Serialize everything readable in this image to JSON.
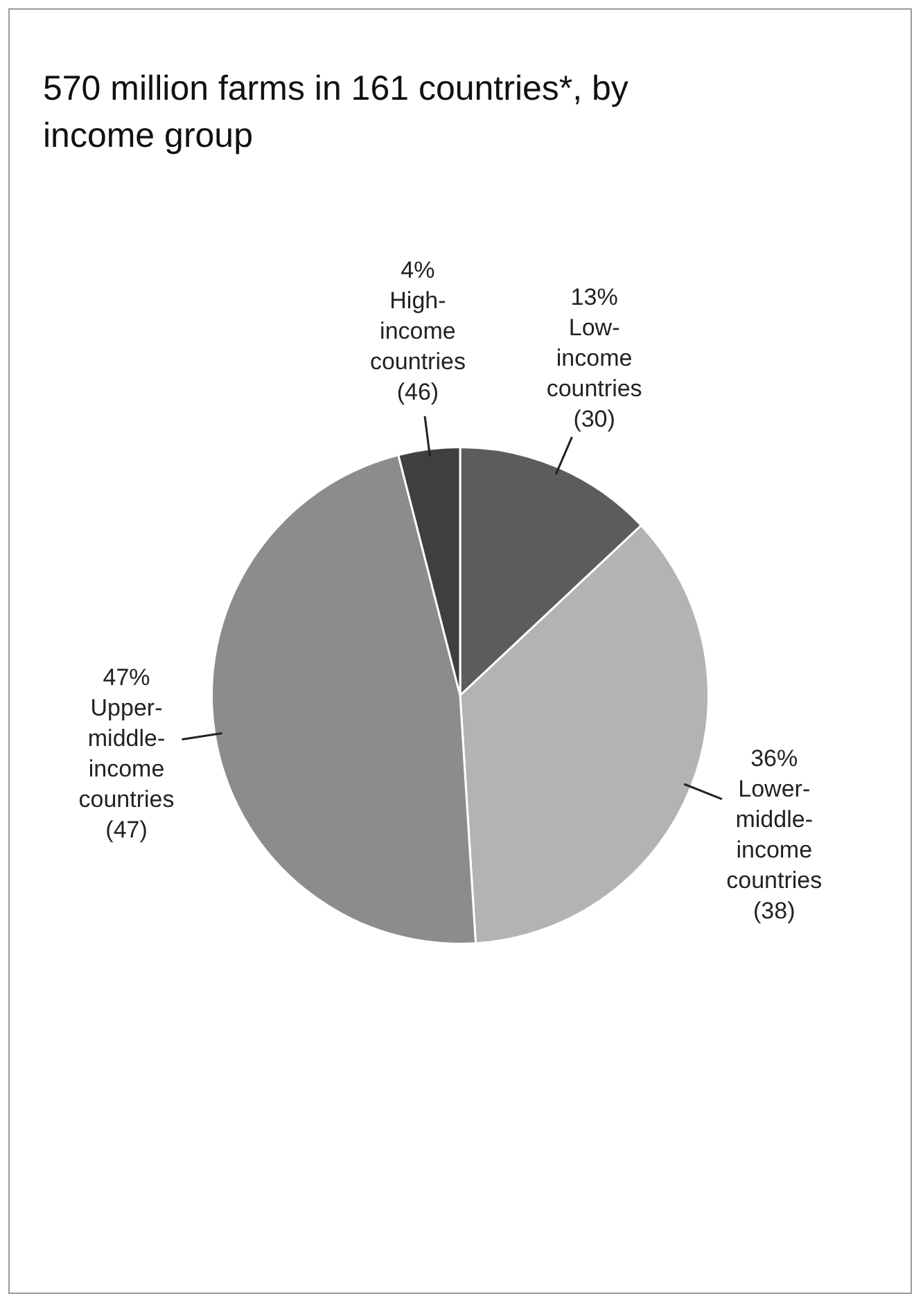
{
  "chart_data": {
    "type": "pie",
    "title": "570 million farms in 161 countries*, by income group",
    "categories": [
      "Low-income countries (30)",
      "Lower-middle-income countries (38)",
      "Upper-middle-income countries (47)",
      "High-income countries (46)"
    ],
    "values": [
      13,
      36,
      47,
      4
    ],
    "value_labels": [
      "13%",
      "36%",
      "47%",
      "4%"
    ],
    "colors": [
      "#5c5c5c",
      "#b3b3b3",
      "#8c8c8c",
      "#3f3f3f"
    ],
    "legend": false
  }
}
